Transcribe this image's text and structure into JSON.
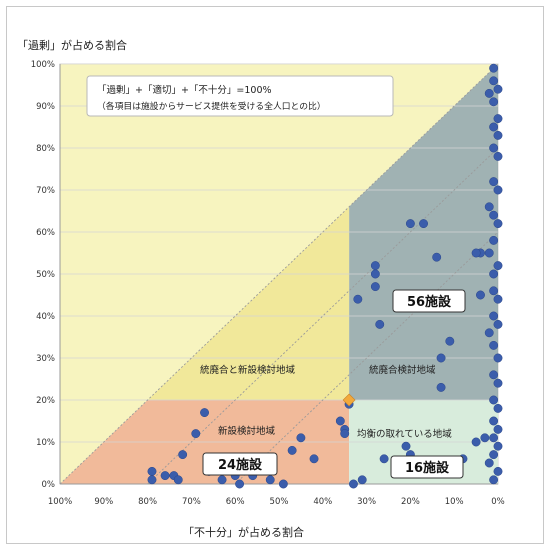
{
  "y_axis_title": "「過剰」が占める割合",
  "x_axis_title": "「不十分」が占める割合",
  "formula": {
    "line1": "「過剰」+「適切」+「不十分」=100%",
    "line2": "（各項目は施設からサービス提供を受ける全人口との比）"
  },
  "regions": {
    "consolidation_new_label": "統廃合と新設検討地域",
    "consolidation_label": "統廃合検討地域",
    "new_label": "新設検討地域",
    "balanced_label": "均衡の取れている地域"
  },
  "counts": {
    "consolidation": "56施設",
    "new": "24施設",
    "balanced": "16施設"
  },
  "colors": {
    "triangle_fill": "#f7f4bf",
    "band_yellow": "#f1e89a",
    "consolidation": "#8fa4a6",
    "new": "#f0b28f",
    "balanced": "#d8ecdc",
    "points": "#3b5dab",
    "diamond": "#f2a93b"
  },
  "chart_data": {
    "type": "scatter",
    "xlabel": "「不十分」が占める割合",
    "ylabel": "「過剰」が占める割合",
    "x_reversed": true,
    "xlim": [
      0,
      100
    ],
    "ylim": [
      0,
      100
    ],
    "x_ticks": [
      "100%",
      "90%",
      "80%",
      "70%",
      "60%",
      "50%",
      "40%",
      "30%",
      "20%",
      "10%",
      "0%"
    ],
    "y_ticks": [
      "0%",
      "10%",
      "20%",
      "30%",
      "40%",
      "50%",
      "60%",
      "70%",
      "80%",
      "90%",
      "100%"
    ],
    "thresholds": {
      "insufficient": 34,
      "excess": 20
    },
    "series": [
      {
        "points": [
          [
            1,
            99
          ],
          [
            1,
            96
          ],
          [
            0,
            94
          ],
          [
            2,
            93
          ],
          [
            1,
            91
          ],
          [
            0,
            87
          ],
          [
            1,
            85
          ],
          [
            0,
            83
          ],
          [
            1,
            80
          ],
          [
            0,
            78
          ],
          [
            1,
            72
          ],
          [
            0,
            70
          ],
          [
            2,
            66
          ],
          [
            1,
            64
          ],
          [
            0,
            62
          ],
          [
            1,
            58
          ],
          [
            2,
            55
          ],
          [
            0,
            52
          ],
          [
            1,
            50
          ],
          [
            4,
            45
          ],
          [
            1,
            46
          ],
          [
            0,
            44
          ],
          [
            1,
            40
          ],
          [
            0,
            38
          ],
          [
            2,
            36
          ],
          [
            1,
            33
          ],
          [
            0,
            30
          ],
          [
            1,
            26
          ],
          [
            0,
            24
          ],
          [
            1,
            20
          ],
          [
            0,
            18
          ],
          [
            1,
            15
          ],
          [
            0,
            13
          ],
          [
            1,
            11
          ],
          [
            0,
            9
          ],
          [
            1,
            7
          ],
          [
            2,
            5
          ],
          [
            0,
            3
          ],
          [
            1,
            1
          ],
          [
            3,
            11
          ],
          [
            5,
            10
          ],
          [
            4,
            55
          ],
          [
            5,
            55
          ],
          [
            11,
            34
          ],
          [
            14,
            54
          ],
          [
            17,
            62
          ],
          [
            20,
            62
          ],
          [
            13,
            30
          ],
          [
            13,
            23
          ],
          [
            28,
            50
          ],
          [
            28,
            52
          ],
          [
            28,
            47
          ],
          [
            27,
            38
          ],
          [
            32,
            44
          ],
          [
            34,
            19
          ],
          [
            35,
            13
          ],
          [
            36,
            15
          ],
          [
            35,
            12
          ],
          [
            45,
            11
          ],
          [
            42,
            6
          ],
          [
            20,
            7
          ],
          [
            26,
            6
          ],
          [
            31,
            1
          ],
          [
            33,
            0
          ],
          [
            21,
            9
          ],
          [
            8,
            6
          ],
          [
            67,
            17
          ],
          [
            69,
            12
          ],
          [
            72,
            7
          ],
          [
            74,
            2
          ],
          [
            66,
            3
          ],
          [
            63,
            1
          ],
          [
            79,
            3
          ],
          [
            79,
            1
          ],
          [
            73,
            1
          ],
          [
            60,
            2
          ],
          [
            59,
            0
          ],
          [
            56,
            2
          ],
          [
            55,
            4
          ],
          [
            49,
            0
          ],
          [
            52,
            1
          ],
          [
            76,
            2
          ],
          [
            47,
            8
          ],
          [
            64,
            6
          ]
        ]
      }
    ]
  }
}
